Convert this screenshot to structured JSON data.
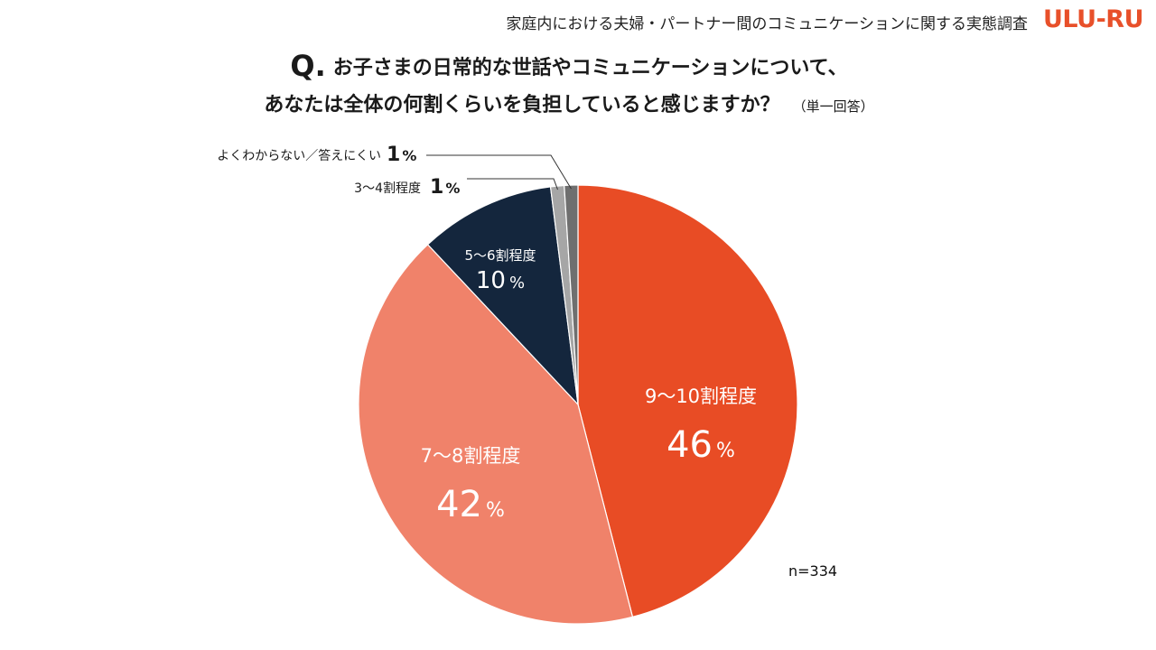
{
  "header": {
    "survey_title": "家庭内における夫婦・パートナー間のコミュニケーションに関する実態調査",
    "brand": "ULU-RU",
    "brand_color": "#e8502a"
  },
  "question": {
    "mark": "Q.",
    "line1": "お子さまの日常的な世話やコミュニケーションについて、",
    "line2": "あなたは全体の何割くらいを負担していると感じますか？",
    "note": "（単一回答）"
  },
  "sample_size": "n=334",
  "chart_data": {
    "type": "pie",
    "start_angle_deg": 0,
    "direction": "clockwise",
    "slices": [
      {
        "label": "9～10割程度",
        "value": 46,
        "display": "46",
        "unit": "%",
        "color": "#e84c25",
        "label_position": "inside",
        "text_color": "#ffffff"
      },
      {
        "label": "7～8割程度",
        "value": 42,
        "display": "42",
        "unit": "%",
        "color": "#f0826a",
        "label_position": "inside",
        "text_color": "#ffffff"
      },
      {
        "label": "5～6割程度",
        "value": 10,
        "display": "10",
        "unit": "%",
        "color": "#14263d",
        "label_position": "inside",
        "text_color": "#ffffff"
      },
      {
        "label": "3～4割程度",
        "value": 1,
        "display": "1",
        "unit": "%",
        "color": "#a6a6a6",
        "label_position": "outside",
        "text_color": "#1a1a1a"
      },
      {
        "label": "よくわからない／答えにくい",
        "value": 1,
        "display": "1",
        "unit": "%",
        "color": "#6f6f6f",
        "label_position": "outside",
        "text_color": "#1a1a1a"
      }
    ]
  }
}
